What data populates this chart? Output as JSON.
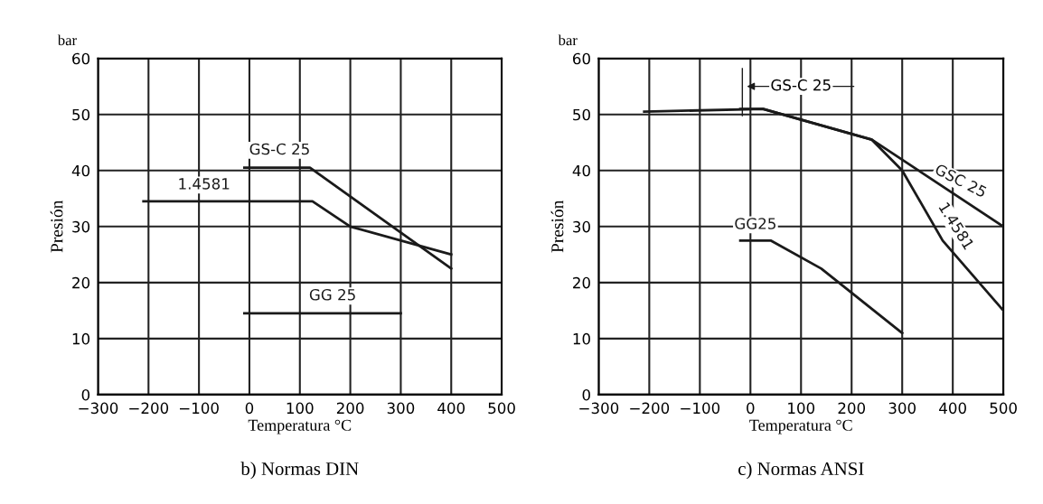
{
  "chart_data": [
    {
      "type": "line",
      "title": "b) Normas DIN",
      "xlabel": "Temperatura °C",
      "ylabel": "Presión",
      "xlim": [
        -300,
        500
      ],
      "ylim": [
        0,
        60
      ],
      "xticks": [
        -300,
        -200,
        -100,
        0,
        100,
        200,
        300,
        400,
        500
      ],
      "yticks": [
        0,
        10,
        20,
        30,
        40,
        50,
        60
      ],
      "grid": true,
      "legend": false,
      "marker": "none",
      "line_style": "solid",
      "series": [
        {
          "name": "GS-C 25",
          "color": "#1a1a1a",
          "x": [
            -10,
            120,
            400
          ],
          "values": [
            40.5,
            40.5,
            22.5
          ]
        },
        {
          "name": "1.4581",
          "color": "#1a1a1a",
          "x": [
            -210,
            125,
            200,
            400
          ],
          "values": [
            34.5,
            34.5,
            30,
            25
          ]
        },
        {
          "name": "GG 25",
          "color": "#1a1a1a",
          "x": [
            -10,
            300
          ],
          "values": [
            14.5,
            14.5
          ]
        }
      ],
      "annotations": [
        "bar"
      ]
    },
    {
      "type": "line",
      "title": "c) Normas ANSI",
      "xlabel": "Temperatura °C",
      "ylabel": "Presión",
      "xlim": [
        -300,
        500
      ],
      "ylim": [
        0,
        60
      ],
      "xticks": [
        -300,
        -200,
        -100,
        0,
        100,
        200,
        300,
        400,
        500
      ],
      "yticks": [
        0,
        10,
        20,
        30,
        40,
        50,
        60
      ],
      "grid": true,
      "legend": false,
      "marker": "none",
      "line_style": "solid",
      "series": [
        {
          "name": "1.4581",
          "color": "#1a1a1a",
          "x": [
            -210,
            25,
            240,
            300,
            380,
            500
          ],
          "values": [
            50.5,
            51,
            45.5,
            40,
            27.5,
            15
          ]
        },
        {
          "name": "GSC 25",
          "color": "#1a1a1a",
          "x": [
            -20,
            25,
            240,
            500
          ],
          "values": [
            51,
            51,
            45.5,
            30
          ]
        },
        {
          "name": "GG25",
          "color": "#1a1a1a",
          "x": [
            -20,
            40,
            140,
            300
          ],
          "values": [
            27.5,
            27.5,
            22.5,
            11
          ]
        }
      ],
      "annotations": [
        "bar",
        "GS-C 25"
      ]
    }
  ]
}
